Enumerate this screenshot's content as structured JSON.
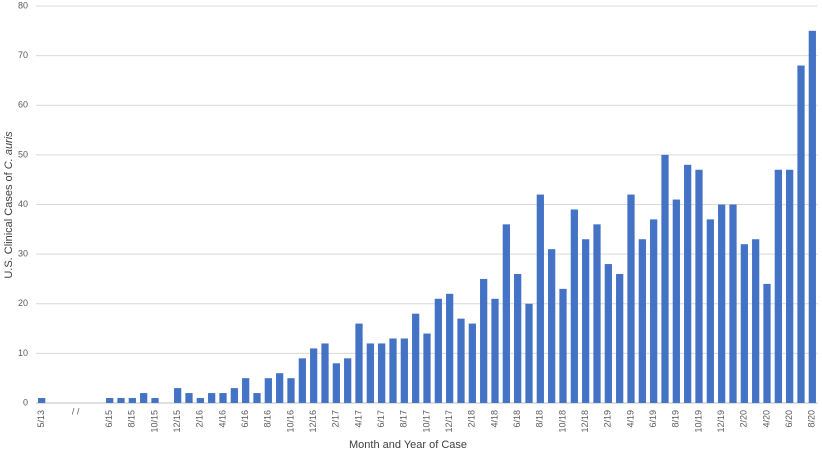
{
  "chart_data": {
    "type": "bar",
    "ylabel": "U.S. Clinical Cases of ",
    "ylabel_italic": "C. auris",
    "xlabel": "Month and Year of Case",
    "break_label": "/ /",
    "color": "#4472c4",
    "grid": true,
    "ylim": [
      0,
      80
    ],
    "yticks": [
      0,
      10,
      20,
      30,
      40,
      50,
      60,
      70,
      80
    ],
    "categories": [
      "5/13",
      null,
      null,
      null,
      null,
      null,
      "6/15",
      null,
      "8/15",
      null,
      "10/15",
      null,
      "12/15",
      null,
      "2/16",
      null,
      "4/16",
      null,
      "6/16",
      null,
      "8/16",
      null,
      "10/16",
      null,
      "12/16",
      null,
      "2/17",
      null,
      "4/17",
      null,
      "6/17",
      null,
      "8/17",
      null,
      "10/17",
      null,
      "12/17",
      null,
      "2/18",
      null,
      "4/18",
      null,
      "6/18",
      null,
      "8/18",
      null,
      "10/18",
      null,
      "12/18",
      null,
      "2/19",
      null,
      "4/19",
      null,
      "6/19",
      null,
      "8/19",
      null,
      "10/19",
      null,
      "12/19",
      null,
      "2/20",
      null,
      "4/20",
      null,
      "6/20",
      null,
      "8/20"
    ],
    "values": [
      1,
      null,
      null,
      null,
      null,
      null,
      1,
      1,
      1,
      2,
      1,
      0,
      3,
      2,
      1,
      2,
      2,
      3,
      5,
      2,
      5,
      6,
      5,
      9,
      11,
      12,
      8,
      9,
      16,
      12,
      12,
      13,
      13,
      18,
      14,
      21,
      22,
      17,
      16,
      25,
      21,
      36,
      26,
      20,
      42,
      31,
      23,
      39,
      33,
      36,
      28,
      26,
      42,
      33,
      37,
      50,
      41,
      48,
      47,
      37,
      40,
      40,
      32,
      33,
      24,
      47,
      47,
      68,
      75
    ]
  }
}
